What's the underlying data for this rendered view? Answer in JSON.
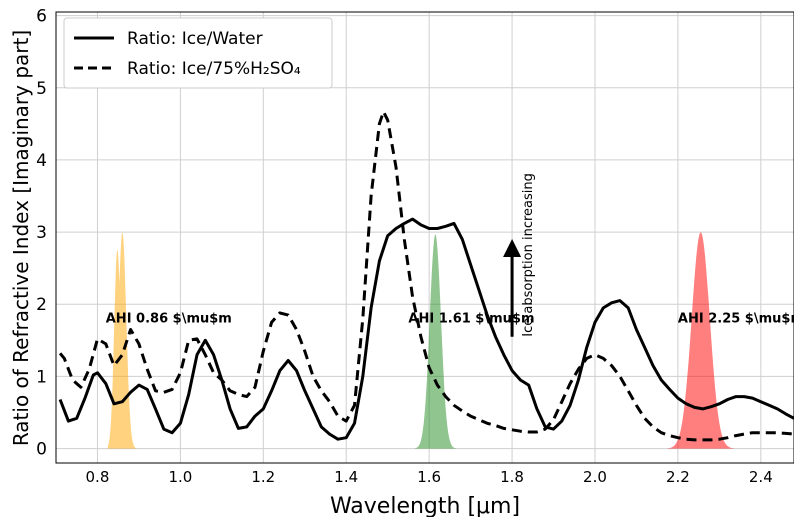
{
  "chart_data": {
    "type": "line",
    "xlabel": "Wavelength [μm]",
    "ylabel": "Ratio of Refractive Index [Imaginary part]",
    "xlim": [
      0.7,
      2.48
    ],
    "ylim": [
      -0.2,
      6.05
    ],
    "grid": true,
    "legend_position": "top-left",
    "xticks": [
      0.8,
      1.0,
      1.2,
      1.4,
      1.6,
      1.8,
      2.0,
      2.2,
      2.4
    ],
    "xtick_labels": [
      "0.8",
      "1.0",
      "1.2",
      "1.4",
      "1.6",
      "1.8",
      "2.0",
      "2.2",
      "2.4"
    ],
    "yticks": [
      0,
      1,
      2,
      3,
      4,
      5,
      6
    ],
    "ytick_labels": [
      "0",
      "1",
      "2",
      "3",
      "4",
      "5",
      "6"
    ],
    "series": [
      {
        "name": "Ratio: Ice/Water",
        "style": "solid",
        "color": "#000000",
        "x": [
          0.71,
          0.73,
          0.75,
          0.77,
          0.79,
          0.8,
          0.82,
          0.84,
          0.86,
          0.88,
          0.9,
          0.92,
          0.94,
          0.96,
          0.98,
          1.0,
          1.02,
          1.04,
          1.06,
          1.08,
          1.1,
          1.12,
          1.14,
          1.16,
          1.18,
          1.2,
          1.22,
          1.24,
          1.26,
          1.28,
          1.3,
          1.32,
          1.34,
          1.36,
          1.38,
          1.4,
          1.42,
          1.44,
          1.46,
          1.48,
          1.5,
          1.52,
          1.54,
          1.56,
          1.58,
          1.6,
          1.62,
          1.64,
          1.66,
          1.68,
          1.7,
          1.72,
          1.74,
          1.76,
          1.78,
          1.8,
          1.82,
          1.84,
          1.86,
          1.88,
          1.9,
          1.92,
          1.94,
          1.96,
          1.98,
          2.0,
          2.02,
          2.04,
          2.06,
          2.08,
          2.1,
          2.12,
          2.14,
          2.16,
          2.18,
          2.2,
          2.22,
          2.24,
          2.26,
          2.28,
          2.3,
          2.32,
          2.34,
          2.36,
          2.38,
          2.4,
          2.42,
          2.44,
          2.46,
          2.48
        ],
        "y": [
          0.68,
          0.38,
          0.42,
          0.7,
          1.02,
          1.05,
          0.9,
          0.62,
          0.65,
          0.78,
          0.88,
          0.82,
          0.55,
          0.27,
          0.22,
          0.35,
          0.75,
          1.3,
          1.5,
          1.3,
          0.95,
          0.55,
          0.28,
          0.3,
          0.45,
          0.55,
          0.8,
          1.08,
          1.22,
          1.08,
          0.8,
          0.55,
          0.3,
          0.2,
          0.13,
          0.15,
          0.35,
          1.0,
          1.95,
          2.6,
          2.95,
          3.05,
          3.12,
          3.18,
          3.1,
          3.05,
          3.05,
          3.08,
          3.12,
          2.9,
          2.55,
          2.2,
          1.85,
          1.55,
          1.3,
          1.08,
          0.95,
          0.88,
          0.55,
          0.3,
          0.27,
          0.38,
          0.6,
          0.95,
          1.4,
          1.75,
          1.95,
          2.02,
          2.05,
          1.95,
          1.65,
          1.4,
          1.15,
          0.95,
          0.82,
          0.7,
          0.62,
          0.57,
          0.55,
          0.58,
          0.62,
          0.68,
          0.72,
          0.72,
          0.7,
          0.65,
          0.6,
          0.55,
          0.48,
          0.42
        ]
      },
      {
        "name": "Ratio: Ice/75%H₂SO₄",
        "style": "dashed",
        "color": "#000000",
        "x": [
          0.71,
          0.72,
          0.74,
          0.76,
          0.78,
          0.8,
          0.82,
          0.84,
          0.86,
          0.88,
          0.9,
          0.92,
          0.94,
          0.96,
          0.98,
          1.0,
          1.02,
          1.04,
          1.06,
          1.08,
          1.1,
          1.12,
          1.14,
          1.16,
          1.18,
          1.2,
          1.22,
          1.24,
          1.26,
          1.28,
          1.3,
          1.32,
          1.34,
          1.36,
          1.38,
          1.4,
          1.42,
          1.44,
          1.46,
          1.48,
          1.49,
          1.5,
          1.52,
          1.54,
          1.56,
          1.58,
          1.6,
          1.62,
          1.64,
          1.66,
          1.68,
          1.7,
          1.72,
          1.74,
          1.76,
          1.78,
          1.8,
          1.82,
          1.84,
          1.86,
          1.88,
          1.9,
          1.92,
          1.94,
          1.96,
          1.98,
          2.0,
          2.02,
          2.04,
          2.06,
          2.08,
          2.1,
          2.12,
          2.14,
          2.16,
          2.18,
          2.2,
          2.22,
          2.24,
          2.26,
          2.28,
          2.3,
          2.32,
          2.34,
          2.36,
          2.38,
          2.4,
          2.42,
          2.44,
          2.46,
          2.48
        ],
        "y": [
          1.32,
          1.25,
          0.95,
          0.85,
          1.1,
          1.52,
          1.45,
          1.15,
          1.3,
          1.65,
          1.45,
          1.1,
          0.8,
          0.78,
          0.82,
          1.05,
          1.5,
          1.52,
          1.3,
          1.05,
          0.95,
          0.8,
          0.75,
          0.72,
          0.85,
          1.35,
          1.75,
          1.88,
          1.85,
          1.65,
          1.35,
          1.0,
          0.8,
          0.65,
          0.45,
          0.38,
          0.6,
          1.8,
          3.5,
          4.5,
          4.67,
          4.55,
          3.9,
          2.9,
          2.1,
          1.55,
          1.12,
          0.88,
          0.72,
          0.6,
          0.52,
          0.45,
          0.4,
          0.35,
          0.32,
          0.28,
          0.26,
          0.24,
          0.23,
          0.23,
          0.27,
          0.4,
          0.65,
          0.9,
          1.1,
          1.25,
          1.3,
          1.25,
          1.15,
          1.0,
          0.8,
          0.6,
          0.42,
          0.3,
          0.22,
          0.18,
          0.15,
          0.13,
          0.12,
          0.12,
          0.12,
          0.13,
          0.15,
          0.18,
          0.2,
          0.22,
          0.22,
          0.22,
          0.22,
          0.21,
          0.2
        ]
      }
    ],
    "bands": [
      {
        "name": "AHI 0.86 μm",
        "label": "AHI 0.86 $\\mu$m",
        "center": 0.86,
        "width": 0.035,
        "peak": 3.0,
        "color": "#ffa500",
        "double": true
      },
      {
        "name": "AHI 1.61 μm",
        "label": "AHI 1.61 $\\mu$m",
        "center": 1.615,
        "width": 0.05,
        "peak": 2.97,
        "color": "#228b22"
      },
      {
        "name": "AHI 2.25 μm",
        "label": "AHI 2.25 $\\mu$m",
        "center": 2.255,
        "width": 0.08,
        "peak": 3.0,
        "color": "#ff0000"
      }
    ],
    "annotation": {
      "text": "Ice absorption increasing",
      "arrow_x": 1.8,
      "arrow_from": 1.55,
      "arrow_to": 2.78
    }
  }
}
